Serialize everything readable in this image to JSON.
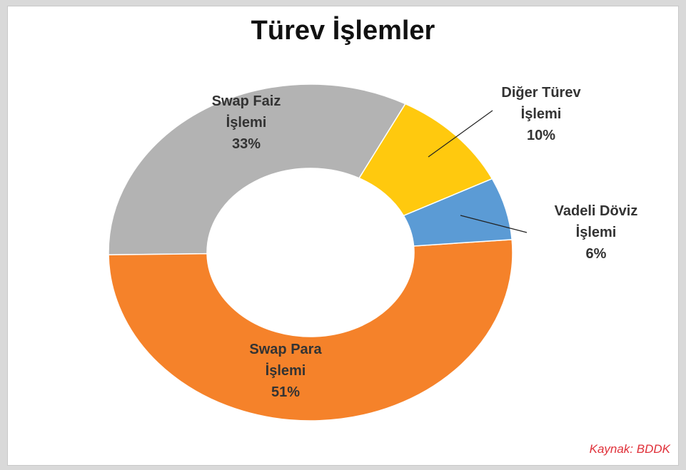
{
  "chart_data": {
    "type": "donut",
    "title": "Türev İşlemler",
    "categories": [
      "Diğer Türev İşlemi",
      "Vadeli Döviz İşlemi",
      "Swap Para İşlemi",
      "Swap Faiz İşlemi"
    ],
    "values": [
      10,
      6,
      51,
      33
    ],
    "value_labels": [
      "10%",
      "6%",
      "51%",
      "33%"
    ],
    "colors": [
      "#ffc90e",
      "#5b9bd5",
      "#f5822a",
      "#b3b3b3"
    ],
    "source": "Kaynak: BDDK"
  }
}
